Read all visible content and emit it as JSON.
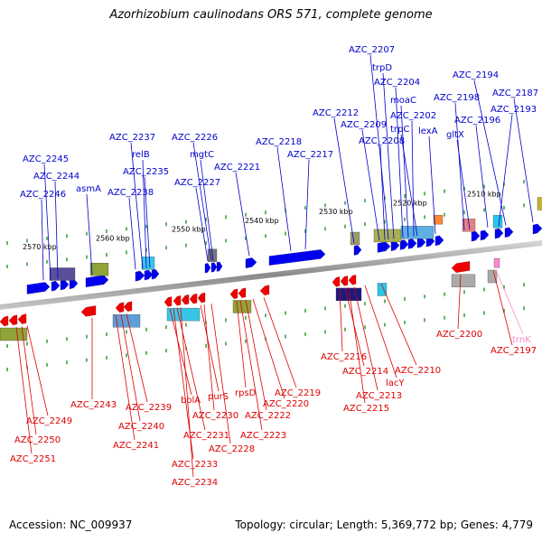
{
  "title": "Azorhizobium caulinodans ORS 571, complete genome",
  "footer": {
    "accession": "Accession: NC_009937",
    "topology": "Topology: circular; Length: 5,369,772 bp; Genes: 4,779"
  },
  "colors": {
    "forward_gene": "#0000ee",
    "reverse_gene": "#ee0000",
    "trna": "#ff88cc"
  },
  "kbp_marks": [
    "2570 kbp",
    "2560 kbp",
    "2550 kbp",
    "2540 kbp",
    "2530 kbp",
    "2520 kbp",
    "2510 kbp"
  ],
  "upper_labels": [
    "AZC_2207",
    "trpD",
    "AZC_2204",
    "moaC",
    "AZC_2202",
    "trpC",
    "lexA",
    "AZC_2194",
    "AZC_2198",
    "AZC_2193",
    "AZC_2187",
    "AZC_2196",
    "gltX",
    "AZC_2212",
    "AZC_2209",
    "AZC_2208",
    "AZC_2218",
    "AZC_2217",
    "AZC_2237",
    "relB",
    "AZC_2235",
    "AZC_2238",
    "AZC_2226",
    "mgtC",
    "AZC_2227",
    "AZC_2221",
    "AZC_2245",
    "AZC_2244",
    "AZC_2246",
    "asmA"
  ],
  "lower_labels": [
    "AZC_2200",
    "trnK",
    "AZC_2197",
    "AZC_2216",
    "AZC_2214",
    "AZC_2213",
    "AZC_2215",
    "lacY",
    "AZC_2210",
    "bolA",
    "purS",
    "rpsD",
    "AZC_2219",
    "AZC_2220",
    "AZC_2222",
    "AZC_2223",
    "AZC_2230",
    "AZC_2231",
    "AZC_2228",
    "AZC_2233",
    "AZC_2234",
    "AZC_2243",
    "AZC_2239",
    "AZC_2240",
    "AZC_2241",
    "AZC_2249",
    "AZC_2250",
    "AZC_2251"
  ]
}
